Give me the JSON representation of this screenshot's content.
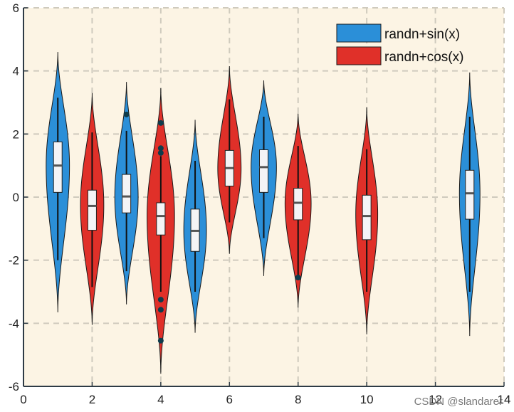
{
  "chart_data": {
    "type": "violin",
    "xlim": [
      0,
      14
    ],
    "ylim": [
      -6,
      6
    ],
    "xticks": [
      0,
      2,
      4,
      6,
      8,
      10,
      12,
      14
    ],
    "yticks": [
      -6,
      -4,
      -2,
      0,
      2,
      4,
      6
    ],
    "grid": true,
    "legend_position": "top-right",
    "series": [
      {
        "name": "randn+sin(x)",
        "color": "#2b8fd8",
        "violins": [
          {
            "x": 1,
            "min": -3.65,
            "max": 4.6,
            "q1": 0.15,
            "median": 1.0,
            "q3": 1.75,
            "whisker_low": -2.0,
            "whisker_high": 3.15,
            "peak": 1.0,
            "halfwidth": 0.34,
            "outliers": []
          },
          {
            "x": 3,
            "min": -3.4,
            "max": 3.65,
            "q1": -0.5,
            "median": 0.02,
            "q3": 0.72,
            "whisker_low": -2.35,
            "whisker_high": 2.1,
            "peak": 0.0,
            "halfwidth": 0.34,
            "outliers": [
              2.62
            ]
          },
          {
            "x": 5,
            "min": -4.3,
            "max": 2.45,
            "q1": -1.72,
            "median": -1.07,
            "q3": -0.38,
            "whisker_low": -3.0,
            "whisker_high": 1.15,
            "peak": -1.05,
            "halfwidth": 0.33,
            "outliers": []
          },
          {
            "x": 7,
            "min": -2.5,
            "max": 3.7,
            "q1": 0.15,
            "median": 0.95,
            "q3": 1.5,
            "whisker_low": -1.3,
            "whisker_high": 2.55,
            "peak": 0.95,
            "halfwidth": 0.37,
            "outliers": []
          },
          {
            "x": 13,
            "min": -4.4,
            "max": 3.95,
            "q1": -0.7,
            "median": 0.12,
            "q3": 0.85,
            "whisker_low": -3.0,
            "whisker_high": 2.55,
            "peak": 0.1,
            "halfwidth": 0.3,
            "outliers": []
          }
        ]
      },
      {
        "name": "randn+cos(x)",
        "color": "#e03029",
        "violins": [
          {
            "x": 2,
            "min": -4.05,
            "max": 3.3,
            "q1": -1.05,
            "median": -0.28,
            "q3": 0.22,
            "whisker_low": -2.85,
            "whisker_high": 2.05,
            "peak": -0.25,
            "halfwidth": 0.34,
            "outliers": []
          },
          {
            "x": 4,
            "min": -5.6,
            "max": 3.45,
            "q1": -1.2,
            "median": -0.6,
            "q3": -0.18,
            "whisker_low": -3.0,
            "whisker_high": 1.3,
            "peak": -0.6,
            "halfwidth": 0.4,
            "outliers": [
              2.35,
              1.55,
              1.4,
              -3.25,
              -3.57,
              -4.55
            ]
          },
          {
            "x": 6,
            "min": -1.8,
            "max": 4.15,
            "q1": 0.35,
            "median": 0.92,
            "q3": 1.48,
            "whisker_low": -0.8,
            "whisker_high": 3.1,
            "peak": 0.9,
            "halfwidth": 0.34,
            "outliers": []
          },
          {
            "x": 8,
            "min": -3.5,
            "max": 2.65,
            "q1": -0.72,
            "median": -0.18,
            "q3": 0.28,
            "whisker_low": -2.5,
            "whisker_high": 1.62,
            "peak": -0.2,
            "halfwidth": 0.38,
            "outliers": [
              -2.55
            ]
          },
          {
            "x": 10,
            "min": -4.35,
            "max": 2.85,
            "q1": -1.35,
            "median": -0.6,
            "q3": 0.06,
            "whisker_low": -3.0,
            "whisker_high": 1.52,
            "peak": -0.55,
            "halfwidth": 0.32,
            "outliers": []
          }
        ]
      }
    ]
  },
  "watermark": "CSDN @slandarer"
}
